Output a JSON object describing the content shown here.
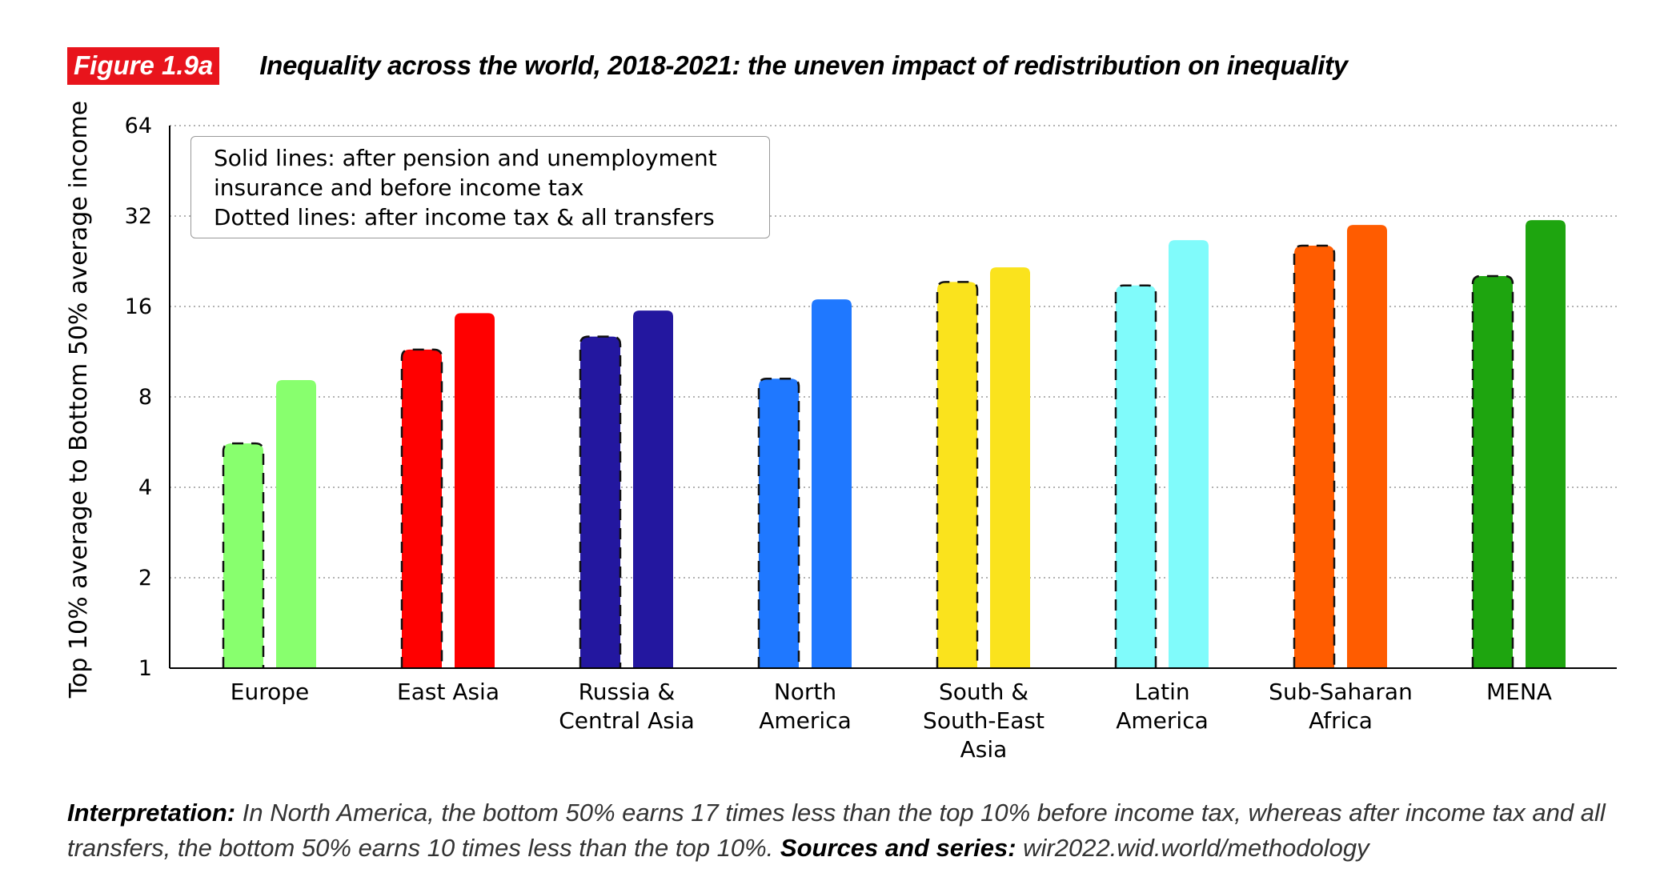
{
  "header": {
    "figure_label": "Figure 1.9a",
    "title": "Inequality across the world, 2018-2021: the uneven impact of redistribution on inequality"
  },
  "legend": {
    "line1": "Solid lines: after pension and unemployment",
    "line2": "insurance and before income tax",
    "line3": "Dotted lines: after income tax & all transfers"
  },
  "footer": {
    "interpretation_label": "Interpretation:",
    "interpretation_text": " In North America, the bottom 50% earns 17 times less than the top 10% before income tax, whereas after income tax and all transfers, the bottom 50% earns 10 times less than the top 10%.",
    "sources_label": "Sources and series:",
    "sources_text": " wir2022.wid.world/methodology"
  },
  "chart_data": {
    "type": "bar",
    "scale": "log2",
    "ylabel": "Top 10% average to Bottom 50% average income",
    "ylim": [
      1,
      64
    ],
    "yticks": [
      1,
      2,
      4,
      8,
      16,
      32,
      64
    ],
    "grid": "dotted horizontal",
    "legend_position": "top-left",
    "categories": [
      [
        "Europe"
      ],
      [
        "East Asia"
      ],
      [
        "Russia &",
        "Central Asia"
      ],
      [
        "North",
        "America"
      ],
      [
        "South &",
        "South-East",
        "Asia"
      ],
      [
        "Latin",
        "America"
      ],
      [
        "Sub-Saharan",
        "Africa"
      ],
      [
        "MENA"
      ]
    ],
    "colors": [
      "#88ff6e",
      "#ff0000",
      "#23179f",
      "#1f78ff",
      "#fae31d",
      "#80fbfb",
      "#ff5c00",
      "#1ea50f"
    ],
    "series": [
      {
        "name": "After income tax & all transfers",
        "style": "dashed",
        "values": [
          5.6,
          11.5,
          12.7,
          9.2,
          19.3,
          18.8,
          25.5,
          20.2
        ]
      },
      {
        "name": "After pension and unemployment insurance and before income tax",
        "style": "solid",
        "values": [
          9.1,
          15.2,
          15.5,
          16.9,
          21.6,
          26.6,
          29.9,
          31.0
        ]
      }
    ]
  }
}
